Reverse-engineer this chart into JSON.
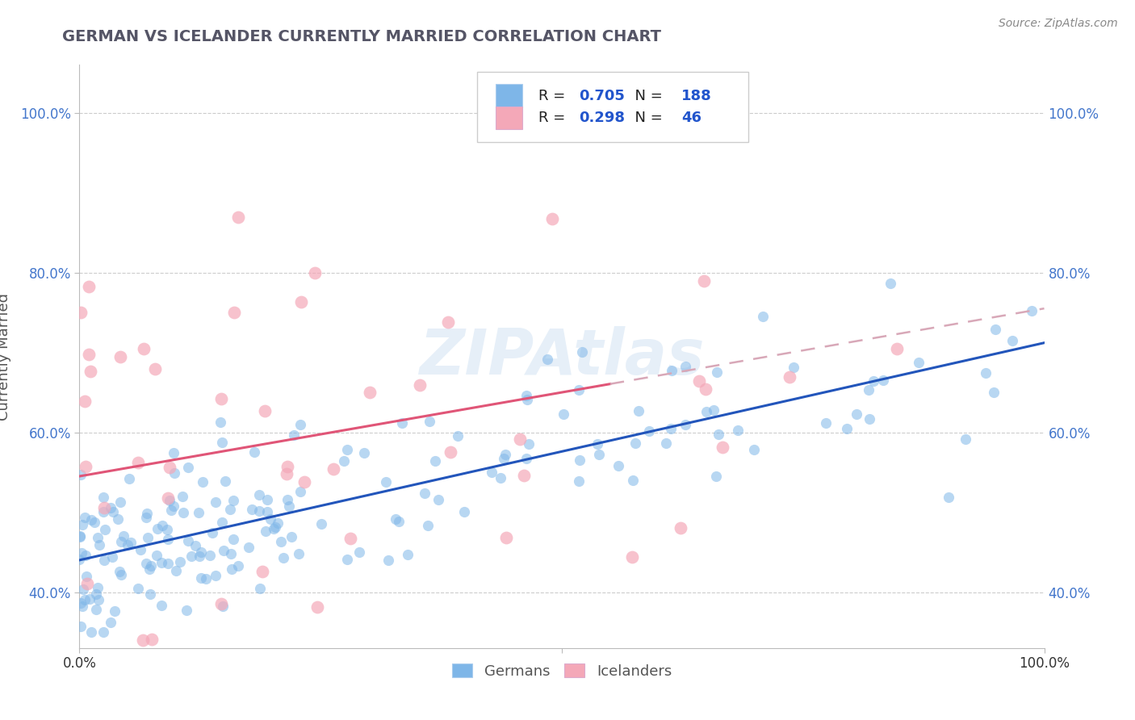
{
  "title": "GERMAN VS ICELANDER CURRENTLY MARRIED CORRELATION CHART",
  "source": "Source: ZipAtlas.com",
  "ylabel_label": "Currently Married",
  "x_min": 0.0,
  "x_max": 1.0,
  "y_min": 0.33,
  "y_max": 1.06,
  "x_ticks": [
    0.0,
    0.5,
    1.0
  ],
  "x_tick_labels": [
    "0.0%",
    "",
    "100.0%"
  ],
  "y_ticks": [
    0.4,
    0.6,
    0.8,
    1.0
  ],
  "y_tick_labels": [
    "40.0%",
    "60.0%",
    "80.0%",
    "100.0%"
  ],
  "german_R": "0.705",
  "german_N": "188",
  "icelander_R": "0.298",
  "icelander_N": "46",
  "blue_scatter_color": "#7EB6E8",
  "pink_scatter_color": "#F4A8B8",
  "blue_line_color": "#2255BB",
  "pink_line_color": "#E05577",
  "pink_dash_color": "#D8A8B8",
  "legend_text_color": "#222222",
  "legend_value_color": "#2255CC",
  "watermark_color": "#D8E8F0",
  "background_color": "#FFFFFF",
  "grid_color": "#CCCCCC",
  "title_color": "#555566",
  "ytick_color": "#4477CC",
  "xtick_color": "#333333",
  "source_color": "#888888",
  "ylabel_color": "#555555"
}
